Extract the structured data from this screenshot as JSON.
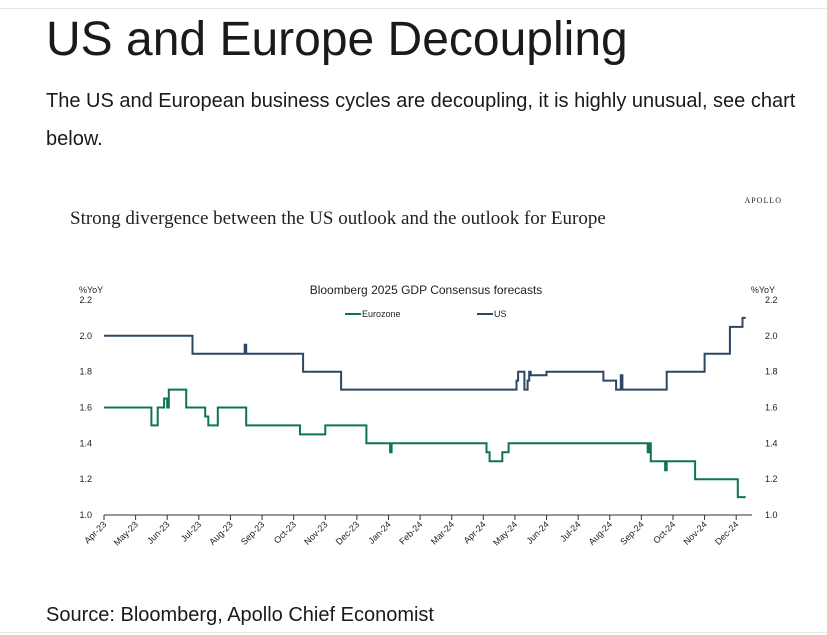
{
  "article": {
    "title": "US and Europe Decoupling",
    "intro": "The US and European business cycles are decoupling, it is highly unusual, see chart below.",
    "source": "Source: Bloomberg, Apollo Chief Economist"
  },
  "figure": {
    "logo": "APOLLO",
    "heading": "Strong divergence between the US outlook and the outlook for Europe"
  },
  "chart_data": {
    "type": "line",
    "title": "Bloomberg 2025 GDP Consensus forecasts",
    "ylabel_left": "%YoY",
    "ylabel_right": "%YoY",
    "ylim": [
      1.0,
      2.2
    ],
    "yticks": [
      1.0,
      1.2,
      1.4,
      1.6,
      1.8,
      2.0,
      2.2
    ],
    "xlim": [
      0,
      20.5
    ],
    "x_unit": "months since Apr-23",
    "xticks": [
      "Apr-23",
      "May-23",
      "Jun-23",
      "Jul-23",
      "Aug-23",
      "Sep-23",
      "Oct-23",
      "Nov-23",
      "Dec-23",
      "Jan-24",
      "Feb-24",
      "Mar-24",
      "Apr-24",
      "May-24",
      "Jun-24",
      "Jul-24",
      "Aug-24",
      "Sep-24",
      "Oct-24",
      "Nov-24",
      "Dec-24"
    ],
    "legend_position": "top-center",
    "grid": false,
    "series": [
      {
        "name": "Eurozone",
        "color": "#0f7457",
        "x": [
          0,
          1.4,
          1.5,
          1.6,
          1.7,
          1.85,
          1.9,
          2.0,
          2.05,
          2.4,
          2.5,
          2.6,
          3.1,
          3.2,
          3.3,
          3.5,
          3.6,
          3.8,
          4.4,
          4.5,
          5.0,
          6.0,
          6.2,
          6.4,
          7.0,
          8.0,
          8.3,
          9.0,
          9.05,
          9.1,
          10.0,
          11.0,
          12.0,
          12.1,
          12.2,
          12.6,
          12.8,
          13.3,
          15.0,
          17.0,
          17.2,
          17.25,
          17.3,
          17.35,
          17.7,
          17.75,
          17.8,
          18.5,
          18.7,
          19.5,
          20.0,
          20.05,
          20.1,
          20.3
        ],
        "y": [
          1.6,
          1.6,
          1.5,
          1.5,
          1.6,
          1.6,
          1.65,
          1.6,
          1.7,
          1.7,
          1.7,
          1.6,
          1.6,
          1.55,
          1.5,
          1.5,
          1.6,
          1.6,
          1.6,
          1.5,
          1.5,
          1.5,
          1.45,
          1.45,
          1.5,
          1.5,
          1.4,
          1.4,
          1.35,
          1.4,
          1.4,
          1.4,
          1.4,
          1.35,
          1.3,
          1.35,
          1.4,
          1.4,
          1.4,
          1.4,
          1.35,
          1.4,
          1.3,
          1.3,
          1.3,
          1.25,
          1.3,
          1.3,
          1.2,
          1.2,
          1.2,
          1.1,
          1.1,
          1.1
        ]
      },
      {
        "name": "US",
        "color": "#2c4666",
        "x": [
          0,
          2.7,
          2.8,
          4.4,
          4.45,
          4.5,
          6.0,
          6.3,
          7.0,
          7.5,
          10.0,
          12.0,
          13.0,
          13.05,
          13.1,
          13.3,
          13.4,
          13.45,
          13.5,
          14.0,
          14.5,
          15.0,
          15.6,
          15.8,
          16.2,
          16.3,
          16.35,
          16.4,
          17.0,
          17.3,
          17.8,
          18.0,
          19.0,
          19.8,
          20.0,
          20.2,
          20.3
        ],
        "y": [
          2.0,
          2.0,
          1.9,
          1.9,
          1.95,
          1.9,
          1.9,
          1.8,
          1.8,
          1.7,
          1.7,
          1.7,
          1.7,
          1.75,
          1.8,
          1.7,
          1.75,
          1.8,
          1.78,
          1.8,
          1.8,
          1.8,
          1.8,
          1.75,
          1.7,
          1.7,
          1.78,
          1.7,
          1.7,
          1.7,
          1.8,
          1.8,
          1.9,
          2.05,
          2.05,
          2.1,
          2.1
        ]
      }
    ]
  }
}
